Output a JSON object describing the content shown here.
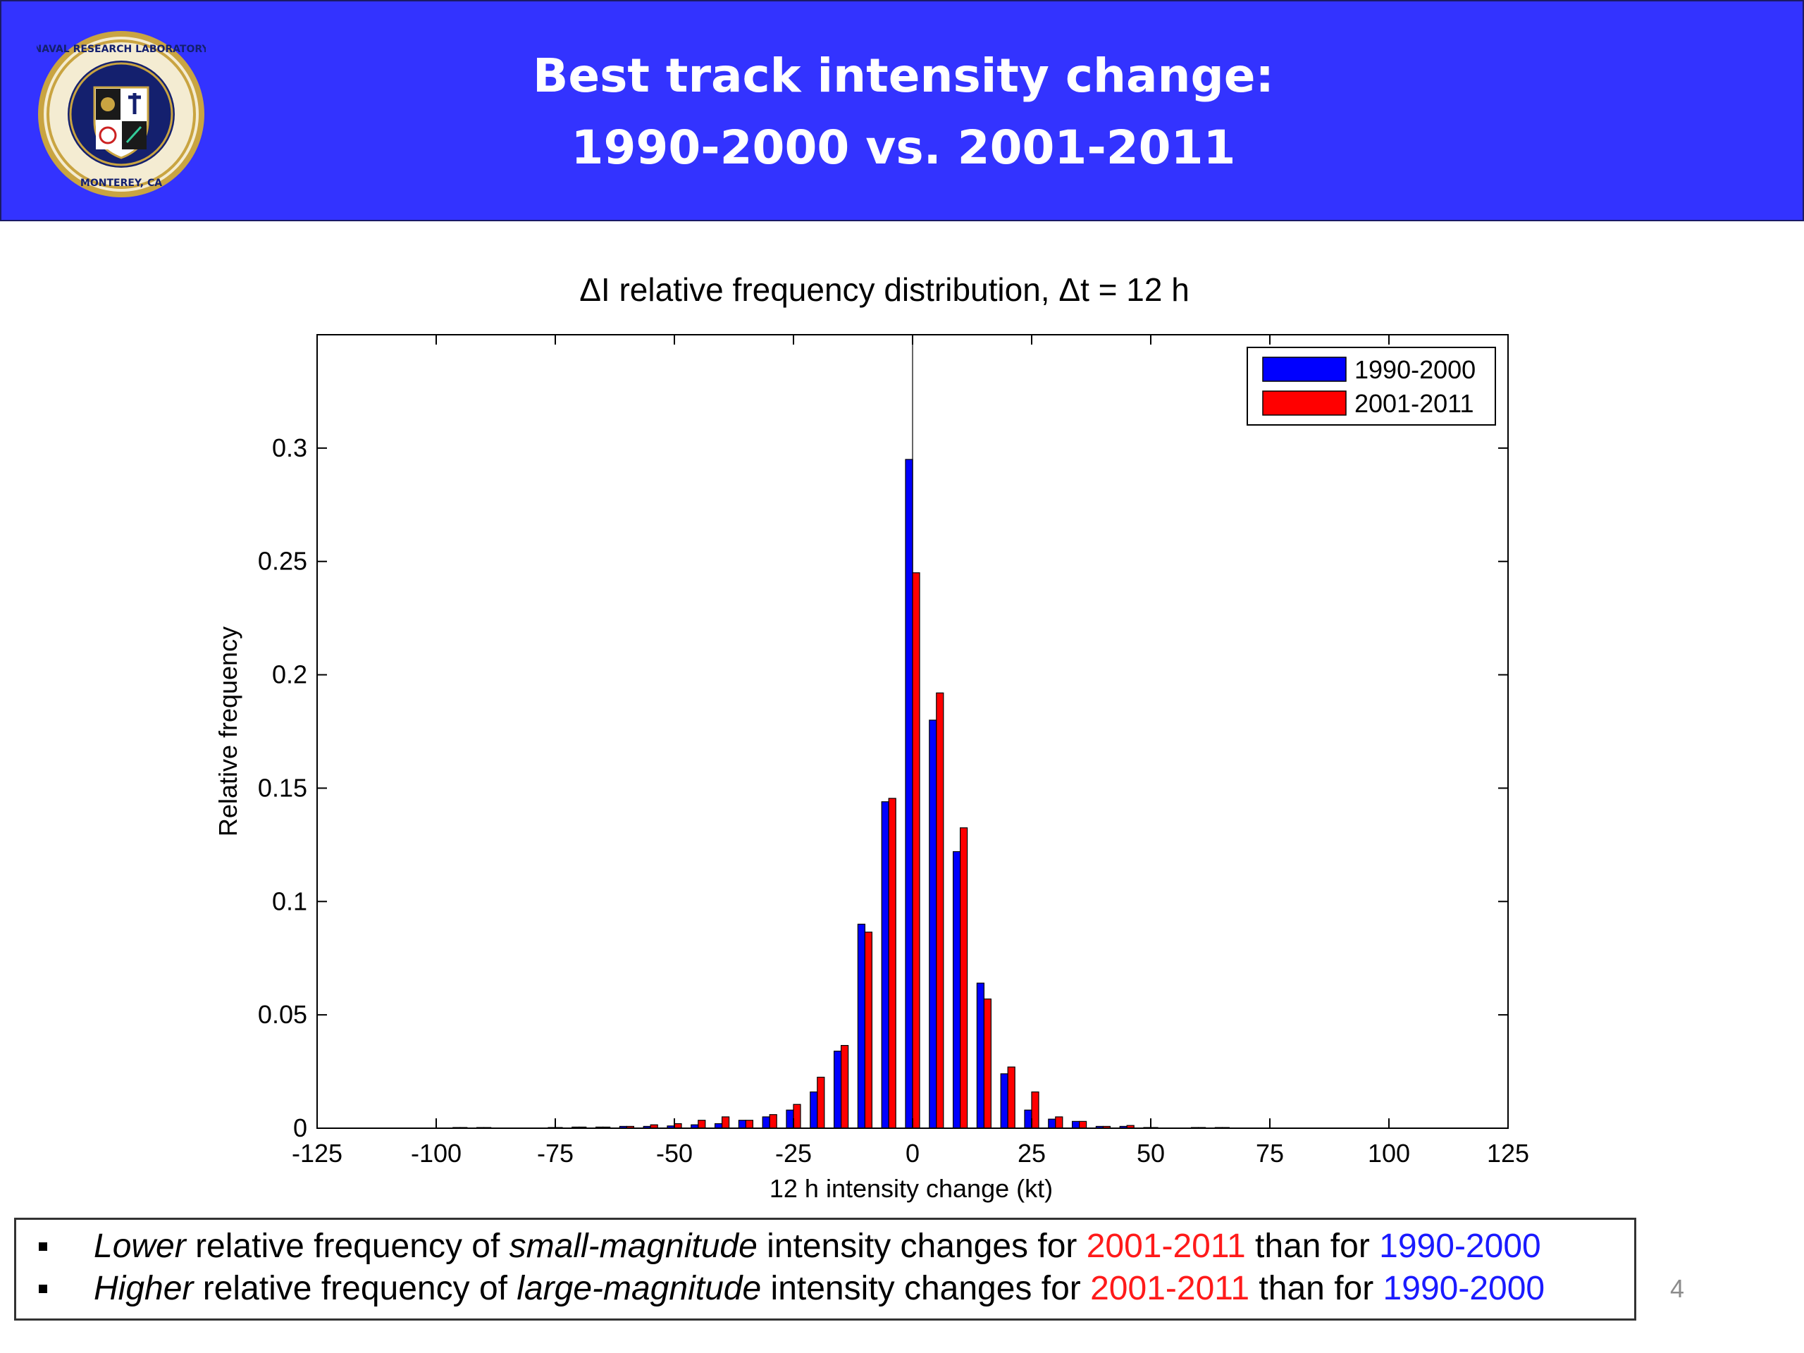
{
  "header": {
    "title_line1": "Best track intensity change:",
    "title_line2": "1990-2000 vs. 2001-2011",
    "logo_text_top": "NAVAL RESEARCH LABORATORY",
    "logo_text_bottom": "MONTEREY, CA"
  },
  "colors": {
    "header_bg": "#3333ff",
    "series_1990": "#0000ff",
    "series_2001": "#ff0000"
  },
  "chart_data": {
    "type": "bar",
    "title": "ΔI  relative frequency distribution, Δt = 12 h",
    "xlabel": "12 h intensity change (kt)",
    "ylabel": "Relative frequency",
    "xlim": [
      -125,
      125
    ],
    "ylim": [
      0,
      0.35
    ],
    "xticks": [
      "-125",
      "-100",
      "-75",
      "-50",
      "-25",
      "0",
      "25",
      "50",
      "75",
      "100",
      "125"
    ],
    "yticks": [
      "0",
      "0.05",
      "0.1",
      "0.15",
      "0.2",
      "0.25",
      "0.3"
    ],
    "legend_position": "top-right",
    "x": [
      -95,
      -90,
      -75,
      -70,
      -65,
      -60,
      -55,
      -50,
      -45,
      -40,
      -35,
      -30,
      -25,
      -20,
      -15,
      -10,
      -5,
      0,
      5,
      10,
      15,
      20,
      25,
      30,
      35,
      40,
      45,
      50,
      60,
      65
    ],
    "series": [
      {
        "name": "1990-2000",
        "values": [
          0.0003,
          0.0003,
          0.0003,
          0.0005,
          0.0005,
          0.0008,
          0.0008,
          0.001,
          0.0015,
          0.002,
          0.0035,
          0.005,
          0.008,
          0.016,
          0.034,
          0.09,
          0.144,
          0.295,
          0.18,
          0.122,
          0.064,
          0.024,
          0.008,
          0.004,
          0.003,
          0.0008,
          0.0008,
          0.0003,
          0.0003,
          0.0003
        ]
      },
      {
        "name": "2001-2011",
        "values": [
          0.0003,
          0.0003,
          0.0003,
          0.0005,
          0.0005,
          0.0008,
          0.0015,
          0.002,
          0.0035,
          0.005,
          0.0035,
          0.006,
          0.0105,
          0.0225,
          0.0365,
          0.0865,
          0.1455,
          0.245,
          0.192,
          0.1325,
          0.057,
          0.027,
          0.016,
          0.005,
          0.003,
          0.0008,
          0.0012,
          0.0003,
          0.0003,
          0.0003
        ]
      }
    ]
  },
  "bullets": [
    {
      "b1": "Lower",
      "b2": " relative frequency of ",
      "b3": "small-magnitude",
      "b4": " intensity changes for ",
      "b5": "2001-2011",
      "b6": " than for ",
      "b7": "1990-2000"
    },
    {
      "b1": "Higher",
      "b2": " relative frequency of ",
      "b3": "large-magnitude",
      "b4": " intensity changes for ",
      "b5": "2001-2011",
      "b6": " than for ",
      "b7": "1990-2000"
    }
  ],
  "page_number": "4"
}
